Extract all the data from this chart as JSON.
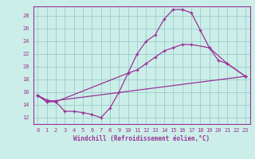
{
  "xlabel": "Windchill (Refroidissement éolien,°C)",
  "ylabel": "",
  "xlim": [
    -0.5,
    23.5
  ],
  "ylim": [
    11.0,
    29.5
  ],
  "yticks": [
    12,
    14,
    16,
    18,
    20,
    22,
    24,
    26,
    28
  ],
  "xticks": [
    0,
    1,
    2,
    3,
    4,
    5,
    6,
    7,
    8,
    9,
    10,
    11,
    12,
    13,
    14,
    15,
    16,
    17,
    18,
    19,
    20,
    21,
    22,
    23
  ],
  "background_color": "#cceee8",
  "grid_color": "#99cccc",
  "line_color": "#993399",
  "line1_x": [
    0,
    1,
    2,
    3,
    4,
    5,
    6,
    7,
    8,
    9,
    10,
    11,
    12,
    13,
    14,
    15,
    16,
    17,
    18,
    19,
    20,
    21,
    23
  ],
  "line1_y": [
    15.5,
    14.8,
    14.5,
    13.0,
    13.0,
    12.8,
    12.5,
    12.0,
    13.5,
    16.0,
    19.0,
    22.0,
    24.0,
    25.0,
    27.5,
    29.0,
    29.0,
    28.5,
    25.8,
    23.0,
    21.0,
    20.5,
    18.5
  ],
  "line2_x": [
    0,
    1,
    23
  ],
  "line2_y": [
    15.5,
    14.5,
    18.5
  ],
  "line3_x": [
    0,
    1,
    2,
    10,
    11,
    12,
    13,
    14,
    15,
    16,
    17,
    19,
    21,
    23
  ],
  "line3_y": [
    15.5,
    14.5,
    14.5,
    19.0,
    19.5,
    20.5,
    21.5,
    22.5,
    23.0,
    23.5,
    23.5,
    23.0,
    20.5,
    18.5
  ],
  "tick_labelsize": 5.0,
  "xlabel_fontsize": 5.5
}
